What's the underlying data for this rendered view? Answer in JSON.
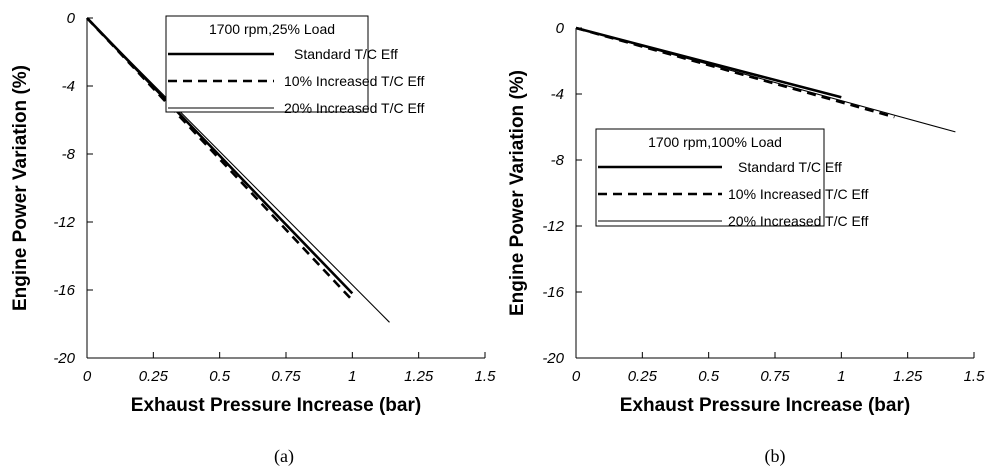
{
  "chart_data": [
    {
      "type": "line",
      "caption": "(a)",
      "xlabel": "Exhaust Pressure Increase (bar)",
      "ylabel": "Engine Power Variation (%)",
      "xlim": [
        0,
        1.5
      ],
      "ylim": [
        -20,
        0
      ],
      "xticks": [
        "0",
        "0.25",
        "0.5",
        "0.75",
        "1",
        "1.25",
        "1.5"
      ],
      "yticks": [
        "0",
        "-4",
        "-8",
        "-12",
        "-16",
        "-20"
      ],
      "grid": false,
      "legend_title": "1700 rpm,25% Load",
      "legend_position": "top-right",
      "series": [
        {
          "name": "Standard T/C Eff",
          "style": "thick-solid",
          "x": [
            0,
            1.0
          ],
          "y": [
            0,
            -16.2
          ]
        },
        {
          "name": "10% Increased T/C Eff",
          "style": "dashed",
          "x": [
            0,
            1.0
          ],
          "y": [
            0,
            -16.6
          ]
        },
        {
          "name": "20% Increased T/C Eff",
          "style": "thin-solid",
          "x": [
            0,
            1.14
          ],
          "y": [
            0,
            -17.9
          ]
        }
      ]
    },
    {
      "type": "line",
      "caption": "(b)",
      "xlabel": "Exhaust Pressure Increase (bar)",
      "ylabel": "Engine Power Variation (%)",
      "xlim": [
        0,
        1.5
      ],
      "ylim": [
        -20,
        0
      ],
      "xticks": [
        "0",
        "0.25",
        "0.5",
        "0.75",
        "1",
        "1.25",
        "1.5"
      ],
      "yticks": [
        "0",
        "-4",
        "-8",
        "-12",
        "-16",
        "-20"
      ],
      "grid": false,
      "legend_title": "1700 rpm,100% Load",
      "legend_position": "center",
      "series": [
        {
          "name": "Standard T/C Eff",
          "style": "thick-solid",
          "x": [
            0,
            1.0
          ],
          "y": [
            0,
            -4.2
          ]
        },
        {
          "name": "10% Increased T/C Eff",
          "style": "dashed",
          "x": [
            0,
            1.2
          ],
          "y": [
            0,
            -5.4
          ]
        },
        {
          "name": "20% Increased T/C Eff",
          "style": "thin-solid",
          "x": [
            0,
            1.43
          ],
          "y": [
            0,
            -6.3
          ]
        }
      ]
    }
  ]
}
